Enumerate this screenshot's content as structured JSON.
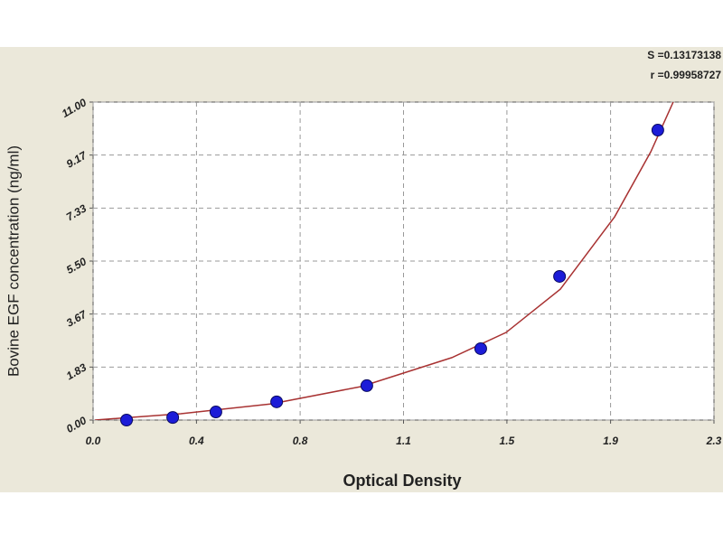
{
  "chart_data": {
    "type": "scatter",
    "x_label": "Optical Density",
    "y_label": "Bovine EGF concentration (ng/ml)",
    "annotations": [
      "S =0.13173138",
      "r =0.99958727"
    ],
    "xlim": [
      0,
      2.3
    ],
    "ylim": [
      0,
      11
    ],
    "xticks": [
      {
        "value": 0,
        "label": "0.0"
      },
      {
        "value": 0.383,
        "label": "0.4"
      },
      {
        "value": 0.767,
        "label": "0.8"
      },
      {
        "value": 1.15,
        "label": "1.1"
      },
      {
        "value": 1.533,
        "label": "1.5"
      },
      {
        "value": 1.917,
        "label": "1.9"
      },
      {
        "value": 2.3,
        "label": "2.3"
      }
    ],
    "yticks": [
      {
        "value": 0,
        "label": "0.00"
      },
      {
        "value": 1.833,
        "label": "1.83"
      },
      {
        "value": 3.667,
        "label": "3.67"
      },
      {
        "value": 5.5,
        "label": "5.50"
      },
      {
        "value": 7.333,
        "label": "7.33"
      },
      {
        "value": 9.167,
        "label": "9.17"
      },
      {
        "value": 11,
        "label": "11.00"
      }
    ],
    "grid": true,
    "points": {
      "color": "#1c1cd8",
      "x": [
        0.124,
        0.295,
        0.455,
        0.68,
        1.014,
        1.436,
        1.728,
        2.092
      ],
      "y": [
        0,
        0.09,
        0.28,
        0.63,
        1.19,
        2.47,
        4.97,
        10.03
      ]
    },
    "curve": {
      "color": "#a83232",
      "x": [
        0.007,
        0.325,
        0.66,
        0.994,
        1.329,
        1.53,
        1.731,
        1.932,
        2.066,
        2.149
      ],
      "y": [
        0,
        0.22,
        0.56,
        1.16,
        2.16,
        3.03,
        4.53,
        7.03,
        9.28,
        11
      ]
    }
  }
}
